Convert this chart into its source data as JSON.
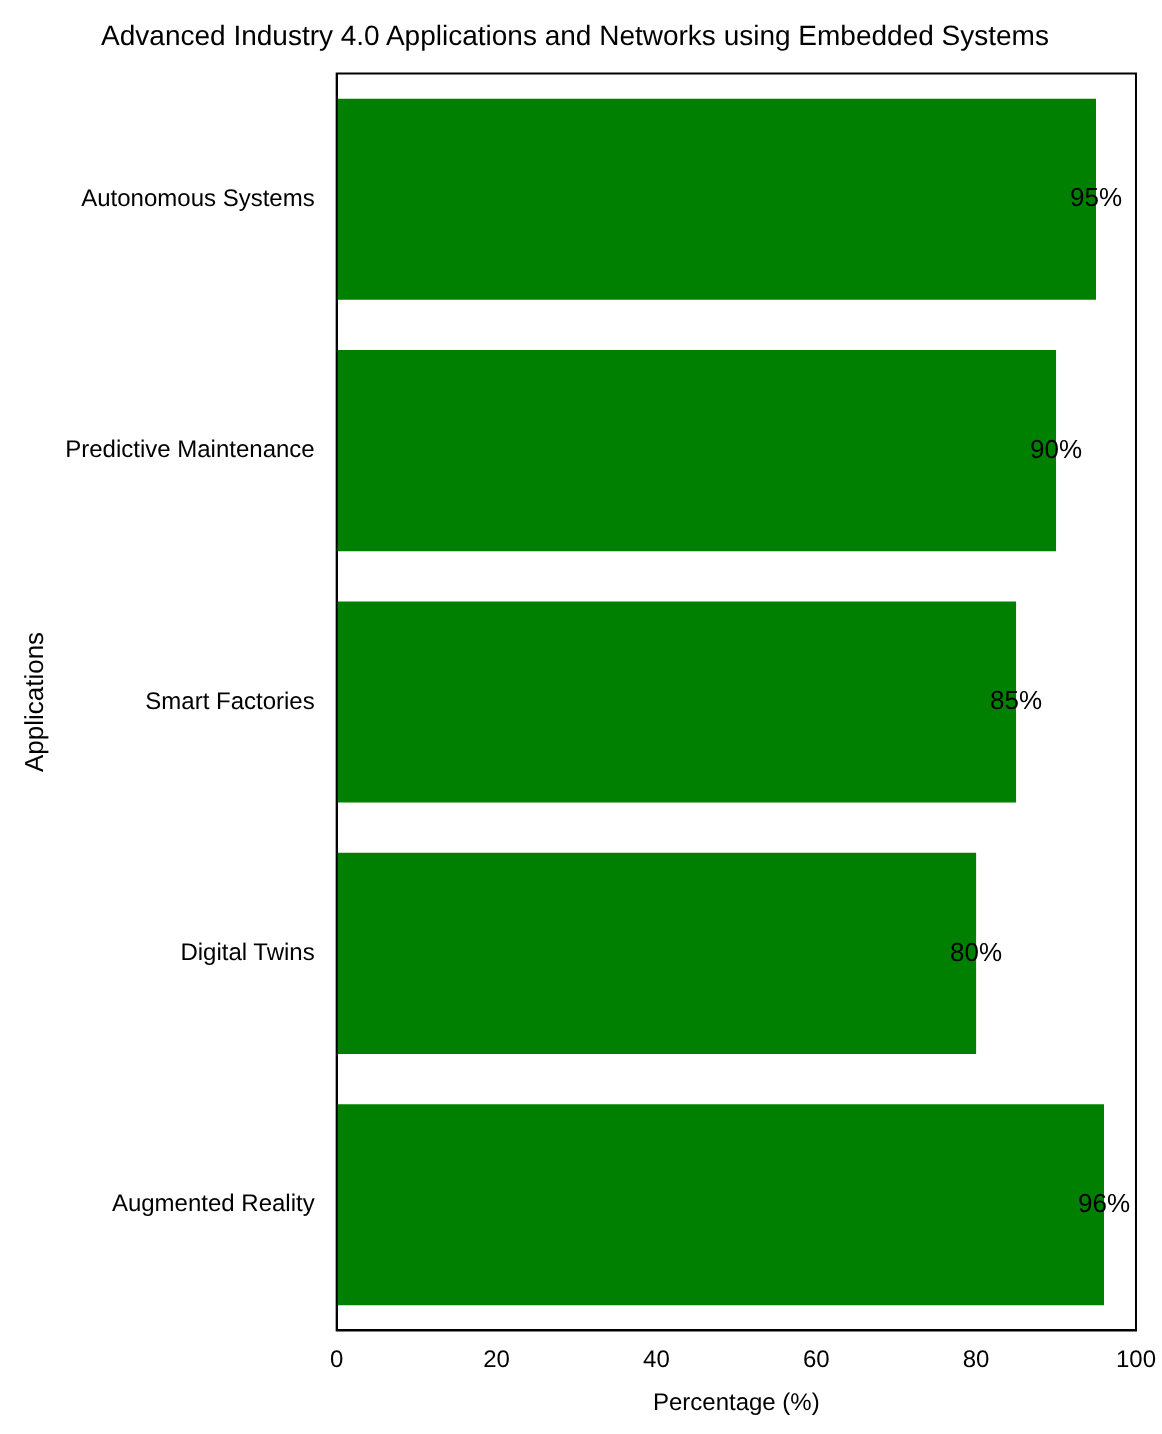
{
  "chart_data": {
    "type": "bar",
    "orientation": "horizontal",
    "title": "Advanced Industry 4.0 Applications and Networks using Embedded Systems",
    "xlabel": "Percentage (%)",
    "ylabel": "Applications",
    "categories": [
      "Autonomous Systems",
      "Predictive Maintenance",
      "Smart Factories",
      "Digital Twins",
      "Augmented Reality"
    ],
    "values": [
      95,
      90,
      85,
      80,
      96
    ],
    "value_labels": [
      "95%",
      "90%",
      "85%",
      "80%",
      "96%"
    ],
    "color": "#008000",
    "xlim": [
      0,
      100
    ],
    "xticks": [
      0,
      20,
      40,
      60,
      80,
      100
    ],
    "grid": false,
    "legend": false
  }
}
